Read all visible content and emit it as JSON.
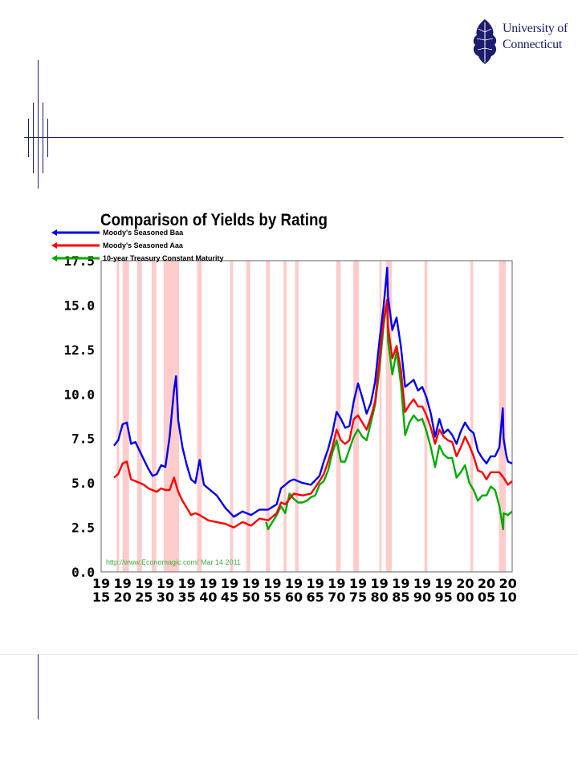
{
  "branding": {
    "logo_line1": "University of",
    "logo_line2": "Connecticut"
  },
  "colors": {
    "baa": "#0000ee",
    "aaa": "#ff0000",
    "treasury": "#00aa00",
    "recession": "#ffcccc",
    "slide_lines": "#1c1c6e"
  },
  "chart_data": {
    "type": "line",
    "title": "Comparison of Yields by Rating",
    "source_note": "http://www.Economagic.com/   Mar 14 2011",
    "xlim": [
      1915,
      2011
    ],
    "ylim": [
      0,
      17.5
    ],
    "grid": false,
    "legend_position": "top-left",
    "y_ticks": [
      "0.0",
      "2.5",
      "5.0",
      "7.5",
      "10.0",
      "12.5",
      "15.0",
      "17.5"
    ],
    "x_ticks": [
      {
        "value": 1915,
        "top": "19",
        "bottom": "15"
      },
      {
        "value": 1920,
        "top": "19",
        "bottom": "20"
      },
      {
        "value": 1925,
        "top": "19",
        "bottom": "25"
      },
      {
        "value": 1930,
        "top": "19",
        "bottom": "30"
      },
      {
        "value": 1935,
        "top": "19",
        "bottom": "35"
      },
      {
        "value": 1940,
        "top": "19",
        "bottom": "40"
      },
      {
        "value": 1945,
        "top": "19",
        "bottom": "45"
      },
      {
        "value": 1950,
        "top": "19",
        "bottom": "50"
      },
      {
        "value": 1955,
        "top": "19",
        "bottom": "55"
      },
      {
        "value": 1960,
        "top": "19",
        "bottom": "60"
      },
      {
        "value": 1965,
        "top": "19",
        "bottom": "65"
      },
      {
        "value": 1970,
        "top": "19",
        "bottom": "70"
      },
      {
        "value": 1975,
        "top": "19",
        "bottom": "75"
      },
      {
        "value": 1980,
        "top": "19",
        "bottom": "80"
      },
      {
        "value": 1985,
        "top": "19",
        "bottom": "85"
      },
      {
        "value": 1990,
        "top": "19",
        "bottom": "90"
      },
      {
        "value": 1995,
        "top": "19",
        "bottom": "95"
      },
      {
        "value": 2000,
        "top": "20",
        "bottom": "00"
      },
      {
        "value": 2005,
        "top": "20",
        "bottom": "05"
      },
      {
        "value": 2010,
        "top": "20",
        "bottom": "10"
      }
    ],
    "recessions": [
      [
        1918.6,
        1919.2
      ],
      [
        1920.0,
        1921.5
      ],
      [
        1923.4,
        1924.5
      ],
      [
        1926.8,
        1927.9
      ],
      [
        1929.6,
        1933.2
      ],
      [
        1937.4,
        1938.5
      ],
      [
        1945.1,
        1945.8
      ],
      [
        1948.9,
        1949.8
      ],
      [
        1953.5,
        1954.4
      ],
      [
        1957.6,
        1958.3
      ],
      [
        1960.3,
        1961.1
      ],
      [
        1969.9,
        1970.9
      ],
      [
        1973.9,
        1975.2
      ],
      [
        1980.0,
        1980.5
      ],
      [
        1981.5,
        1982.9
      ],
      [
        1990.5,
        1991.2
      ],
      [
        2001.2,
        2001.9
      ],
      [
        2007.9,
        2009.5
      ]
    ],
    "series": [
      {
        "name": "Moody's Seasoned Baa",
        "x": [
          1918,
          1919,
          1920,
          1921,
          1922,
          1923,
          1924,
          1925,
          1926,
          1927,
          1928,
          1929,
          1930,
          1931,
          1932,
          1932.5,
          1933,
          1934,
          1935,
          1936,
          1937,
          1938,
          1939,
          1940,
          1942,
          1944,
          1946,
          1948,
          1950,
          1952,
          1954,
          1956,
          1957,
          1958,
          1959,
          1960,
          1962,
          1964,
          1966,
          1967,
          1968,
          1969,
          1970,
          1971,
          1972,
          1973,
          1974,
          1975,
          1976,
          1977,
          1978,
          1979,
          1980,
          1981,
          1981.8,
          1982,
          1983,
          1984,
          1985,
          1986,
          1987,
          1988,
          1989,
          1990,
          1991,
          1992,
          1993,
          1994,
          1995,
          1996,
          1997,
          1998,
          1999,
          2000,
          2001,
          2002,
          2003,
          2004,
          2005,
          2006,
          2007,
          2008,
          2008.8,
          2009,
          2009.6,
          2010,
          2011
        ],
        "y": [
          7.1,
          7.4,
          8.3,
          8.4,
          7.2,
          7.3,
          6.8,
          6.3,
          5.8,
          5.4,
          5.5,
          6.0,
          5.9,
          7.6,
          10.2,
          11.0,
          8.5,
          7.0,
          6.0,
          5.2,
          5.0,
          6.3,
          4.9,
          4.7,
          4.3,
          3.6,
          3.1,
          3.4,
          3.2,
          3.5,
          3.5,
          3.8,
          4.7,
          4.9,
          5.1,
          5.2,
          5.0,
          4.9,
          5.4,
          6.2,
          6.9,
          7.8,
          9.0,
          8.6,
          8.1,
          8.2,
          9.6,
          10.6,
          9.8,
          8.9,
          9.5,
          10.7,
          13.0,
          15.0,
          17.1,
          15.5,
          13.6,
          14.3,
          12.7,
          10.4,
          10.6,
          10.8,
          10.2,
          10.4,
          9.8,
          8.9,
          7.6,
          8.6,
          7.8,
          8.0,
          7.7,
          7.2,
          7.9,
          8.4,
          8.0,
          7.8,
          6.8,
          6.4,
          6.1,
          6.5,
          6.5,
          7.0,
          9.2,
          7.5,
          6.6,
          6.2,
          6.1
        ]
      },
      {
        "name": "Moody's Seasoned Aaa",
        "x": [
          1918,
          1919,
          1920,
          1921,
          1922,
          1923,
          1924,
          1925,
          1926,
          1927,
          1928,
          1929,
          1930,
          1931,
          1932,
          1933,
          1934,
          1935,
          1936,
          1937,
          1938,
          1940,
          1942,
          1944,
          1946,
          1948,
          1950,
          1952,
          1954,
          1956,
          1957,
          1958,
          1960,
          1962,
          1964,
          1966,
          1967,
          1968,
          1969,
          1970,
          1971,
          1972,
          1973,
          1974,
          1975,
          1976,
          1977,
          1978,
          1979,
          1980,
          1981,
          1981.8,
          1982,
          1983,
          1984,
          1985,
          1986,
          1987,
          1988,
          1989,
          1990,
          1991,
          1992,
          1993,
          1994,
          1995,
          1996,
          1997,
          1998,
          1999,
          2000,
          2001,
          2002,
          2003,
          2004,
          2005,
          2006,
          2007,
          2008,
          2009,
          2010,
          2011
        ],
        "y": [
          5.3,
          5.5,
          6.1,
          6.2,
          5.2,
          5.1,
          5.0,
          4.9,
          4.7,
          4.6,
          4.5,
          4.7,
          4.6,
          4.6,
          5.3,
          4.5,
          4.0,
          3.6,
          3.2,
          3.3,
          3.2,
          2.9,
          2.8,
          2.7,
          2.5,
          2.8,
          2.6,
          3.0,
          2.9,
          3.3,
          3.9,
          3.8,
          4.4,
          4.3,
          4.4,
          5.1,
          5.5,
          6.2,
          7.0,
          8.0,
          7.4,
          7.2,
          7.4,
          8.6,
          8.8,
          8.4,
          8.0,
          8.7,
          9.6,
          11.9,
          14.2,
          15.3,
          13.8,
          12.0,
          12.7,
          11.4,
          9.0,
          9.4,
          9.7,
          9.3,
          9.3,
          8.8,
          8.1,
          7.2,
          8.0,
          7.6,
          7.4,
          7.3,
          6.5,
          7.0,
          7.6,
          7.1,
          6.5,
          5.7,
          5.6,
          5.2,
          5.6,
          5.6,
          5.6,
          5.3,
          4.9,
          5.1
        ]
      },
      {
        "name": "10-year Treasury Constant Maturity",
        "x": [
          1953.5,
          1954,
          1955,
          1956,
          1957,
          1958,
          1959,
          1960,
          1961,
          1962,
          1963,
          1964,
          1965,
          1966,
          1967,
          1968,
          1969,
          1970,
          1971,
          1972,
          1973,
          1974,
          1975,
          1976,
          1977,
          1978,
          1979,
          1980,
          1981,
          1981.8,
          1982,
          1983,
          1984,
          1985,
          1986,
          1987,
          1988,
          1989,
          1990,
          1991,
          1992,
          1993,
          1994,
          1995,
          1996,
          1997,
          1998,
          1999,
          2000,
          2001,
          2002,
          2003,
          2004,
          2005,
          2006,
          2007,
          2008,
          2008.9,
          2009,
          2010,
          2011
        ],
        "y": [
          2.8,
          2.4,
          2.8,
          3.2,
          3.7,
          3.3,
          4.4,
          4.1,
          3.9,
          3.9,
          4.0,
          4.2,
          4.3,
          4.9,
          5.1,
          5.7,
          6.7,
          7.4,
          6.2,
          6.2,
          6.9,
          7.6,
          8.0,
          7.6,
          7.4,
          8.4,
          9.4,
          11.4,
          13.9,
          15.3,
          13.0,
          11.1,
          12.4,
          10.6,
          7.7,
          8.4,
          8.8,
          8.5,
          8.6,
          7.9,
          7.0,
          5.9,
          7.1,
          6.6,
          6.4,
          6.4,
          5.3,
          5.6,
          6.0,
          5.0,
          4.6,
          4.0,
          4.3,
          4.3,
          4.8,
          4.6,
          3.7,
          2.4,
          3.3,
          3.2,
          3.4
        ]
      }
    ]
  }
}
